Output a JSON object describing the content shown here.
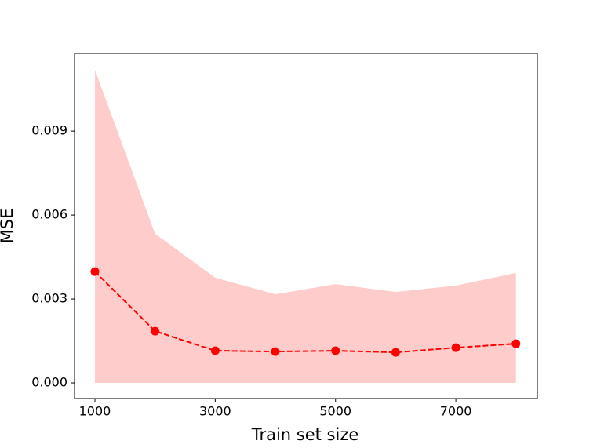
{
  "chart_data": {
    "type": "line",
    "x_label": "Train set size",
    "y_label": "MSE",
    "x": [
      1000,
      2000,
      3000,
      4000,
      5000,
      6000,
      7000,
      8000
    ],
    "series": [
      {
        "color": "#ff0000",
        "values": [
          0.00398,
          0.00185,
          0.00115,
          0.00112,
          0.00115,
          0.00109,
          0.00126,
          0.0014
        ]
      }
    ],
    "band": {
      "color": "#ffcccc",
      "lower": [
        0,
        0,
        0,
        0,
        0,
        0,
        0,
        0
      ],
      "upper": [
        0.01119,
        0.00533,
        0.00376,
        0.00317,
        0.00353,
        0.00325,
        0.00348,
        0.00393
      ]
    },
    "xlim": [
      661,
      8355
    ],
    "xticks": [
      1000,
      3000,
      5000,
      7000
    ],
    "ylim": [
      -0.00056,
      0.01178
    ],
    "yticks": [
      {
        "value": 0,
        "label": "0.000"
      },
      0.003,
      0.006,
      0.009
    ],
    "grid": false
  }
}
